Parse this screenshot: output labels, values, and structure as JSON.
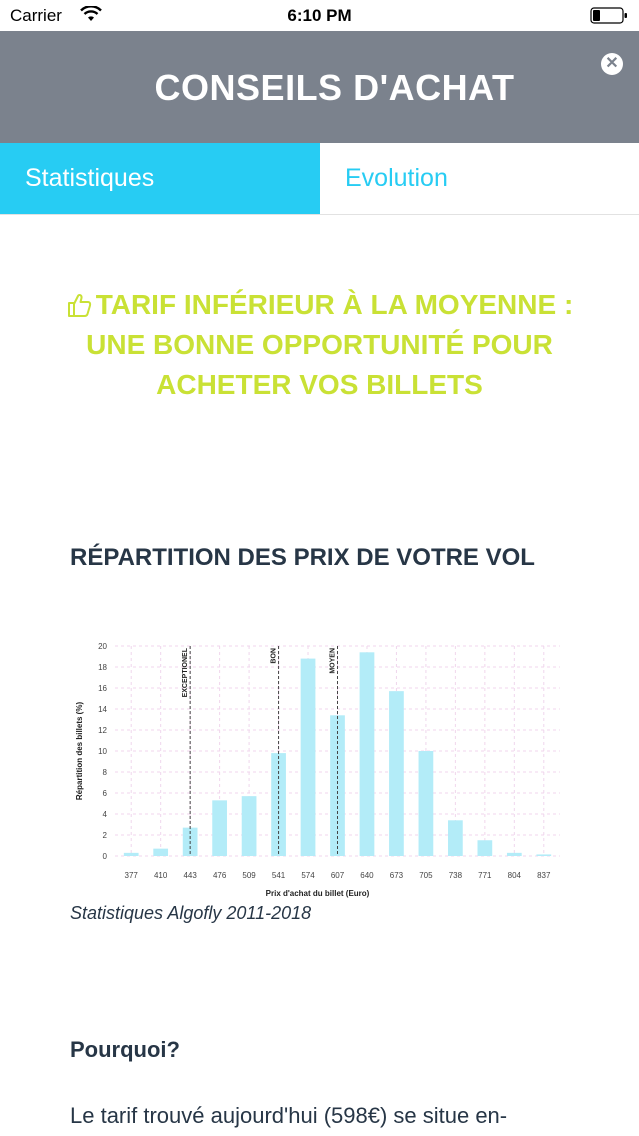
{
  "status_bar": {
    "carrier": "Carrier",
    "time": "6:10 PM"
  },
  "header": {
    "title": "CONSEILS D'ACHAT"
  },
  "tabs": [
    {
      "label": "Statistiques",
      "active": true
    },
    {
      "label": "Evolution",
      "active": false
    }
  ],
  "verdict": {
    "icon": "thumbs-up-icon",
    "text": "TARIF INFÉRIEUR À LA MOYENNE : UNE BONNE OPPORTUNITÉ POUR ACHETER VOS BILLETS"
  },
  "distribution": {
    "title": "RÉPARTITION DES PRIX DE VOTRE VOL",
    "caption": "Statistiques Algofly 2011-2018"
  },
  "chart_data": {
    "type": "bar",
    "categories": [
      "377",
      "410",
      "443",
      "476",
      "509",
      "541",
      "574",
      "607",
      "640",
      "673",
      "705",
      "738",
      "771",
      "804",
      "837"
    ],
    "values": [
      0.3,
      0.7,
      2.7,
      5.3,
      5.7,
      9.8,
      18.8,
      13.4,
      19.4,
      15.7,
      10.0,
      3.4,
      1.5,
      0.3,
      0.15
    ],
    "xlabel": "Prix d'achat du billet (Euro)",
    "ylabel": "Répartition des billets (%)",
    "ylim": [
      0,
      20
    ],
    "yticks": [
      "0",
      "2",
      "4",
      "6",
      "8",
      "10",
      "12",
      "14",
      "16",
      "18",
      "20"
    ],
    "reference_lines": [
      {
        "label": "EXCEPTIONEL",
        "at_category": "443"
      },
      {
        "label": "BON",
        "at_category": "541"
      },
      {
        "label": "MOYEN",
        "at_category": "607"
      }
    ],
    "bar_color": "#b3ecf8",
    "grid": true
  },
  "pourquoi": {
    "title": "Pourquoi?",
    "text": "Le tarif trouvé aujourd'hui (598€) se situe en-"
  },
  "colors": {
    "header_bg": "#7b828d",
    "accent": "#27ccf3",
    "verdict": "#c9e135",
    "text": "#273646"
  }
}
